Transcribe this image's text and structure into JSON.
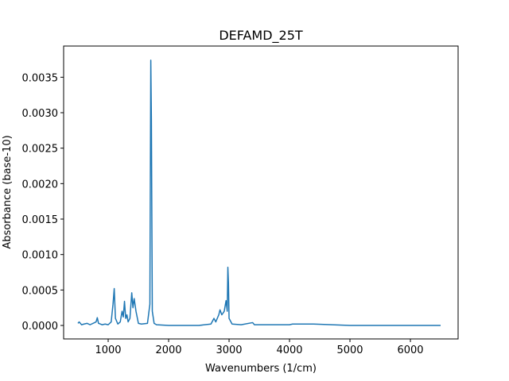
{
  "chart_data": {
    "type": "line",
    "title": "DEFAMD_25T",
    "x_label": "Wavenumbers (1/cm)",
    "y_label": "Absorbance (base-10)",
    "x": [
      500,
      520,
      560,
      600,
      650,
      700,
      800,
      820,
      840,
      900,
      950,
      1000,
      1050,
      1080,
      1100,
      1120,
      1160,
      1200,
      1230,
      1250,
      1270,
      1290,
      1310,
      1330,
      1360,
      1390,
      1410,
      1430,
      1460,
      1500,
      1550,
      1650,
      1690,
      1705,
      1715,
      1730,
      1760,
      1800,
      2000,
      2500,
      2700,
      2750,
      2780,
      2830,
      2850,
      2880,
      2920,
      2950,
      2970,
      2980,
      2990,
      3000,
      3050,
      3200,
      3390,
      3420,
      4000,
      4050,
      4400,
      5000,
      6000,
      6500
    ],
    "series": [
      {
        "name": "DEFAMD_25T",
        "color": "#1f77b4",
        "values": [
          3e-05,
          5e-05,
          1e-05,
          2e-05,
          3e-05,
          1e-05,
          5e-05,
          0.00011,
          3e-05,
          1e-05,
          2e-05,
          1e-05,
          5e-05,
          0.0003,
          0.00052,
          0.0001,
          2e-05,
          5e-05,
          0.0002,
          0.00012,
          0.00034,
          0.0001,
          0.00015,
          5e-05,
          0.0001,
          0.00046,
          0.00025,
          0.00038,
          0.0002,
          3e-05,
          2e-05,
          3e-05,
          0.0003,
          0.00374,
          0.0029,
          0.0002,
          3e-05,
          1e-05,
          0,
          0,
          2e-05,
          0.0001,
          5e-05,
          0.00015,
          0.00022,
          0.00015,
          0.0002,
          0.00035,
          0.0002,
          0.00082,
          0.0006,
          0.0001,
          2e-05,
          1e-05,
          4e-05,
          1e-05,
          1e-05,
          2e-05,
          2e-05,
          0,
          0,
          0
        ]
      }
    ],
    "xlim": [
      263,
      6789
    ],
    "ylim": [
      -0.00019,
      0.00394
    ],
    "xticks": [
      1000,
      2000,
      3000,
      4000,
      5000,
      6000
    ],
    "yticks": [
      {
        "value": 0,
        "label": "0.0000"
      },
      {
        "value": 0.0005,
        "label": "0.0005"
      },
      {
        "value": 0.001,
        "label": "0.0010"
      },
      {
        "value": 0.0015,
        "label": "0.0015"
      },
      {
        "value": 0.002,
        "label": "0.0020"
      },
      {
        "value": 0.0025,
        "label": "0.0025"
      },
      {
        "value": 0.003,
        "label": "0.0030"
      },
      {
        "value": 0.0035,
        "label": "0.0035"
      }
    ],
    "grid": false
  }
}
